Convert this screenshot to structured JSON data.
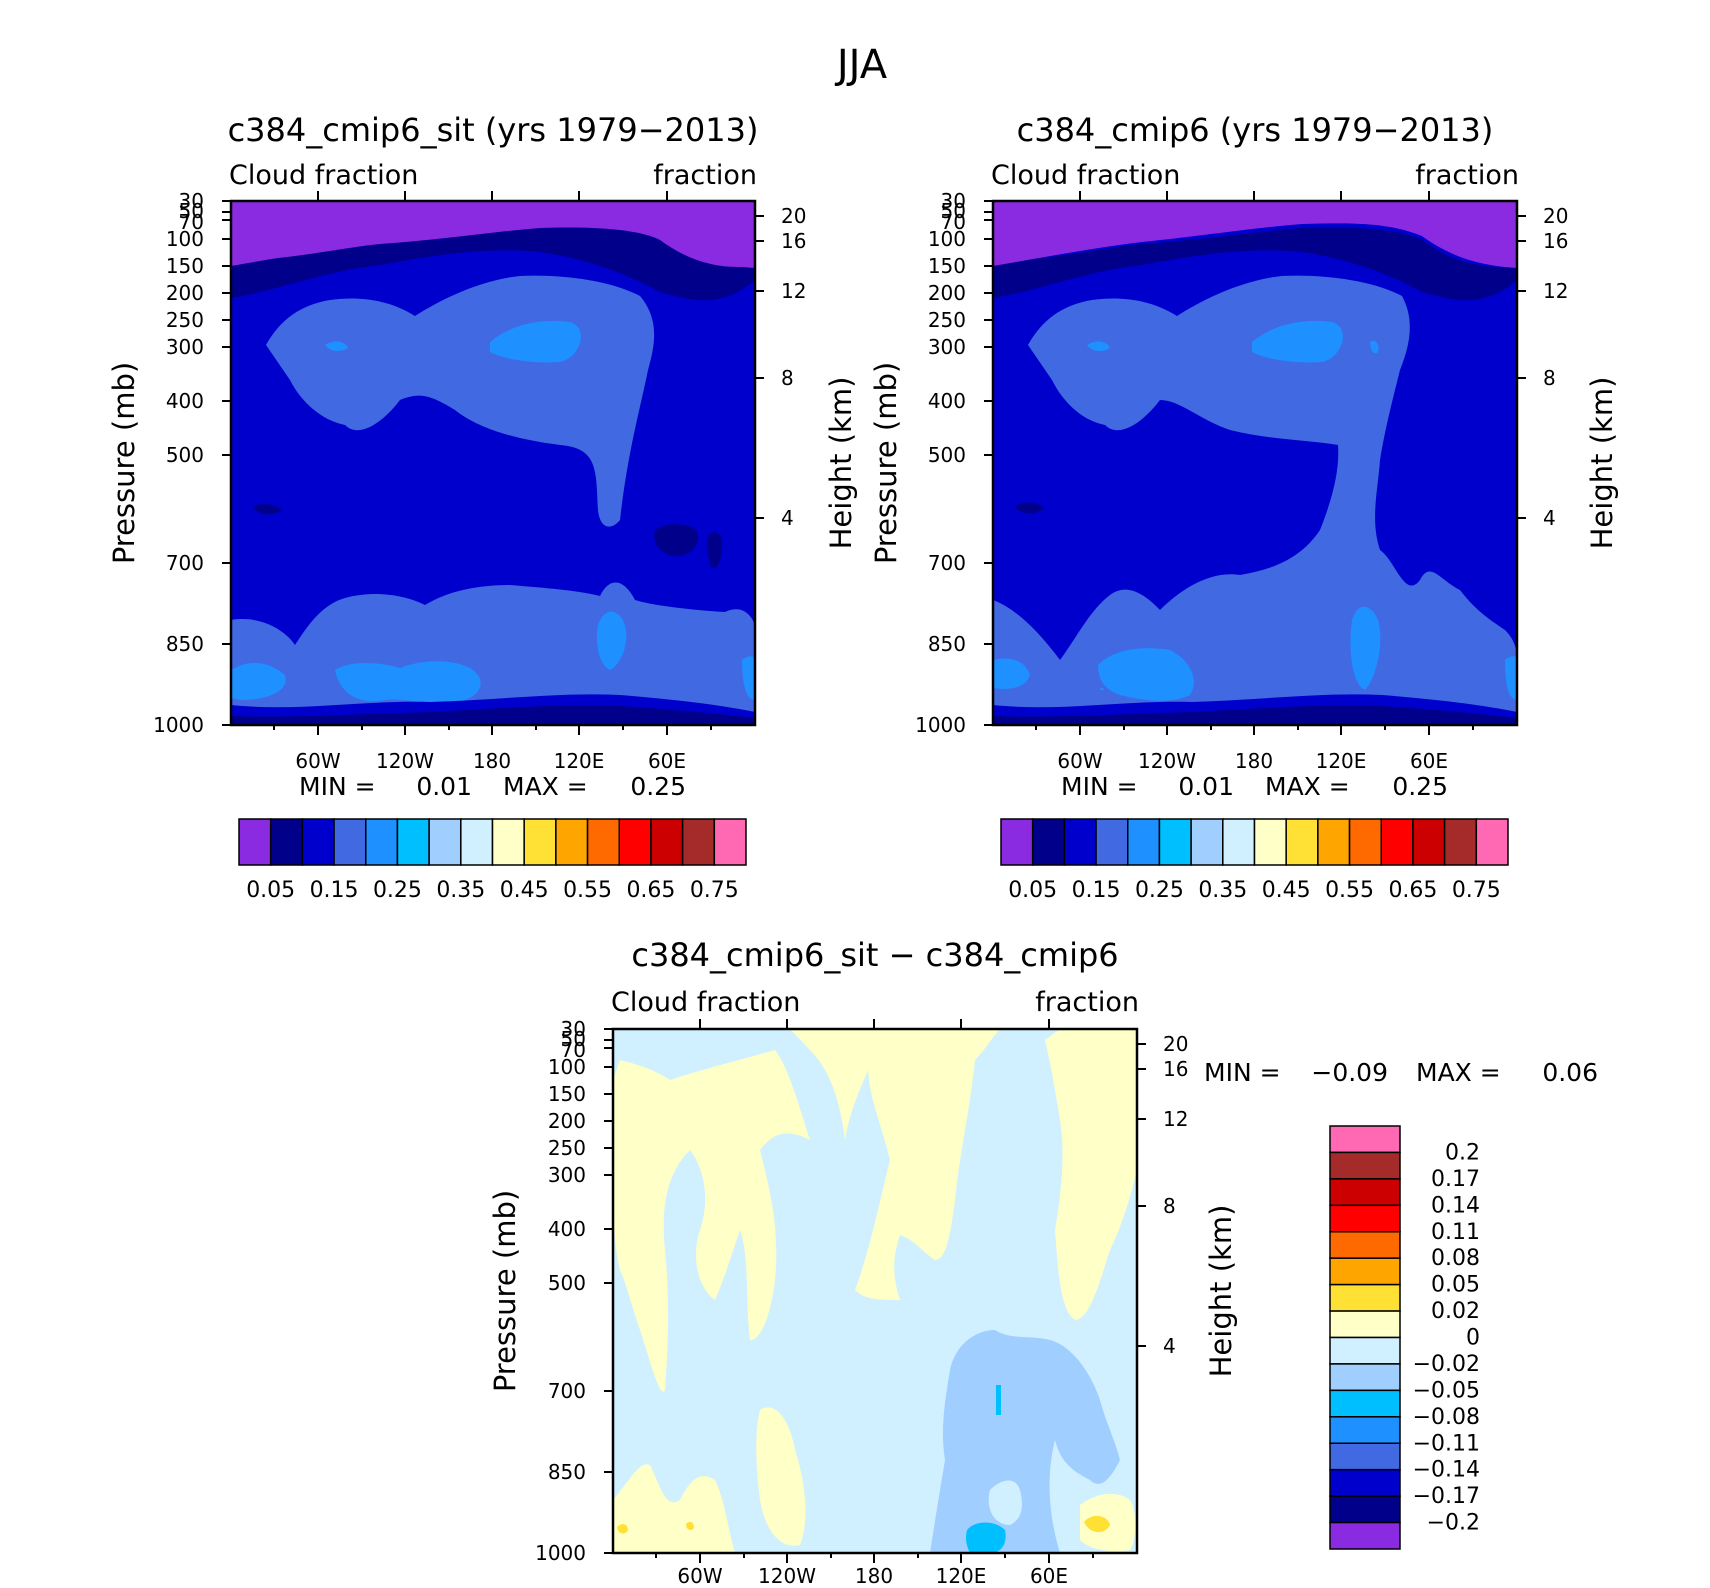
{
  "title": "JJA",
  "chart_data": [
    {
      "type": "heatmap",
      "title": "c384_cmip6_sit (yrs 1979−2013)",
      "left_label": "Cloud fraction",
      "right_label": "fraction",
      "ylabel": "Pressure (mb)",
      "y2label": "Height (km)",
      "xticklabels": [
        "60W",
        "120W",
        "180",
        "120E",
        "60E"
      ],
      "yticklabels": [
        "30",
        "50",
        "70",
        "100",
        "150",
        "200",
        "250",
        "300",
        "400",
        "500",
        "700",
        "850",
        "1000"
      ],
      "y2ticklabels": [
        "20",
        "16",
        "12",
        "8",
        "4"
      ],
      "min_label": "MIN =",
      "min_value": "0.01",
      "max_label": "MAX =",
      "max_value": "0.25",
      "colorbar_labels": [
        "0.05",
        "0.15",
        "0.25",
        "0.35",
        "0.45",
        "0.55",
        "0.65",
        "0.75"
      ],
      "colorbar_colors": [
        "#8a2be2",
        "#00008b",
        "#0000cd",
        "#4169e1",
        "#1e90ff",
        "#00bfff",
        "#a0cfff",
        "#d0f0ff",
        "#ffffc8",
        "#ffe135",
        "#ffa500",
        "#ff6a00",
        "#ff0000",
        "#cc0000",
        "#a52a2a",
        "#ff69b4"
      ]
    },
    {
      "type": "heatmap",
      "title": "c384_cmip6 (yrs 1979−2013)",
      "left_label": "Cloud fraction",
      "right_label": "fraction",
      "ylabel": "Pressure (mb)",
      "y2label": "Height (km)",
      "xticklabels": [
        "60W",
        "120W",
        "180",
        "120E",
        "60E"
      ],
      "yticklabels": [
        "30",
        "50",
        "70",
        "100",
        "150",
        "200",
        "250",
        "300",
        "400",
        "500",
        "700",
        "850",
        "1000"
      ],
      "y2ticklabels": [
        "20",
        "16",
        "12",
        "8",
        "4"
      ],
      "min_label": "MIN =",
      "min_value": "0.01",
      "max_label": "MAX =",
      "max_value": "0.25",
      "colorbar_labels": [
        "0.05",
        "0.15",
        "0.25",
        "0.35",
        "0.45",
        "0.55",
        "0.65",
        "0.75"
      ],
      "colorbar_colors": [
        "#8a2be2",
        "#00008b",
        "#0000cd",
        "#4169e1",
        "#1e90ff",
        "#00bfff",
        "#a0cfff",
        "#d0f0ff",
        "#ffffc8",
        "#ffe135",
        "#ffa500",
        "#ff6a00",
        "#ff0000",
        "#cc0000",
        "#a52a2a",
        "#ff69b4"
      ]
    },
    {
      "type": "heatmap",
      "title": "c384_cmip6_sit − c384_cmip6",
      "left_label": "Cloud fraction",
      "right_label": "fraction",
      "ylabel": "Pressure (mb)",
      "y2label": "Height (km)",
      "xticklabels": [
        "60W",
        "120W",
        "180",
        "120E",
        "60E"
      ],
      "yticklabels": [
        "30",
        "50",
        "70",
        "100",
        "150",
        "200",
        "250",
        "300",
        "400",
        "500",
        "700",
        "850",
        "1000"
      ],
      "y2ticklabels": [
        "20",
        "16",
        "12",
        "8",
        "4"
      ],
      "min_label": "MIN =",
      "min_value": "−0.09",
      "max_label": "MAX =",
      "max_value": "0.06",
      "colorbar_labels": [
        "0.2",
        "0.17",
        "0.14",
        "0.11",
        "0.08",
        "0.05",
        "0.02",
        "0",
        "−0.02",
        "−0.05",
        "−0.08",
        "−0.11",
        "−0.14",
        "−0.17",
        "−0.2"
      ],
      "colorbar_colors": [
        "#ff69b4",
        "#a52a2a",
        "#cc0000",
        "#ff0000",
        "#ff6a00",
        "#ffa500",
        "#ffe135",
        "#ffffc8",
        "#d0f0ff",
        "#a0cfff",
        "#00bfff",
        "#1e90ff",
        "#4169e1",
        "#0000cd",
        "#00008b",
        "#8a2be2"
      ]
    }
  ]
}
